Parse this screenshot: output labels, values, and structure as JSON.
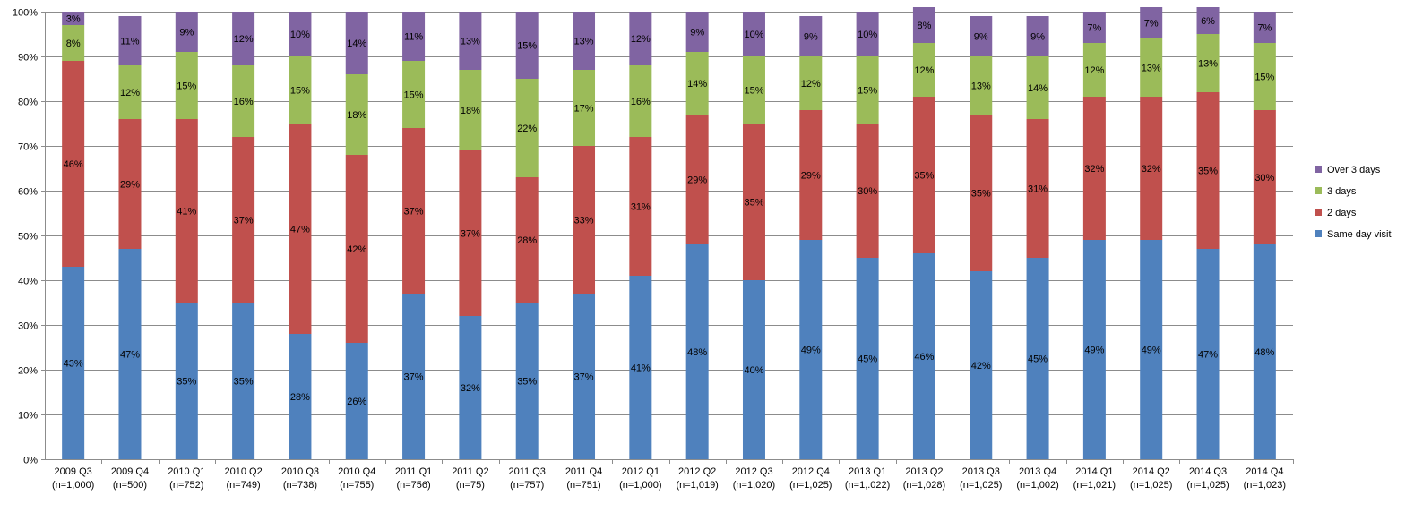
{
  "chart_data": {
    "type": "bar",
    "stacked": true,
    "categories": [
      [
        "2009 Q3",
        "(n=1,000)"
      ],
      [
        "2009 Q4",
        "(n=500)"
      ],
      [
        "2010 Q1",
        "(n=752)"
      ],
      [
        "2010 Q2",
        "(n=749)"
      ],
      [
        "2010 Q3",
        "(n=738)"
      ],
      [
        "2010 Q4",
        "(n=755)"
      ],
      [
        "2011 Q1",
        "(n=756)"
      ],
      [
        "2011 Q2",
        "(n=75)"
      ],
      [
        "2011 Q3",
        "(n=757)"
      ],
      [
        "2011 Q4",
        "(n=751)"
      ],
      [
        "2012 Q1",
        "(n=1,000)"
      ],
      [
        "2012 Q2",
        "(n=1,019)"
      ],
      [
        "2012 Q3",
        "(n=1,020)"
      ],
      [
        "2012 Q4",
        "(n=1,025)"
      ],
      [
        "2013 Q1",
        "(n=1,.022)"
      ],
      [
        "2013 Q2",
        "(n=1,028)"
      ],
      [
        "2013 Q3",
        "(n=1,025)"
      ],
      [
        "2013 Q4",
        "(n=1,002)"
      ],
      [
        "2014 Q1",
        "(n=1,021)"
      ],
      [
        "2014 Q2",
        "(n=1,025)"
      ],
      [
        "2014 Q3",
        "(n=1,025)"
      ],
      [
        "2014 Q4",
        "(n=1,023)"
      ]
    ],
    "series": [
      {
        "name": "Same day visit",
        "color": "#4f81bd",
        "values": [
          43,
          47,
          35,
          35,
          28,
          26,
          37,
          32,
          35,
          37,
          41,
          48,
          40,
          49,
          45,
          46,
          42,
          45,
          49,
          49,
          47,
          48
        ]
      },
      {
        "name": "2 days",
        "color": "#c0504d",
        "values": [
          46,
          29,
          41,
          37,
          47,
          42,
          37,
          37,
          28,
          33,
          31,
          29,
          35,
          29,
          30,
          35,
          35,
          31,
          32,
          32,
          35,
          30
        ]
      },
      {
        "name": "3 days",
        "color": "#9bbb59",
        "values": [
          8,
          12,
          15,
          16,
          15,
          18,
          15,
          18,
          22,
          17,
          16,
          14,
          15,
          12,
          15,
          12,
          13,
          14,
          12,
          13,
          13,
          15
        ]
      },
      {
        "name": "Over 3 days",
        "color": "#8064a2",
        "values": [
          3,
          11,
          9,
          12,
          10,
          14,
          11,
          13,
          15,
          13,
          12,
          9,
          10,
          9,
          10,
          8,
          9,
          9,
          7,
          7,
          6,
          7
        ]
      }
    ],
    "y_ticks": [
      "0%",
      "10%",
      "20%",
      "30%",
      "40%",
      "50%",
      "60%",
      "70%",
      "80%",
      "90%",
      "100%"
    ],
    "ylim": [
      0,
      100
    ],
    "grid": true,
    "legend_position": "right",
    "title": "",
    "xlabel": "",
    "ylabel": ""
  }
}
